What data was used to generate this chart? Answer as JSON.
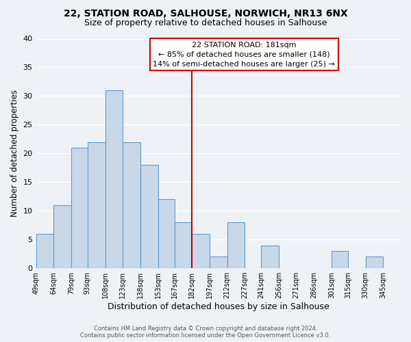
{
  "title1": "22, STATION ROAD, SALHOUSE, NORWICH, NR13 6NX",
  "title2": "Size of property relative to detached houses in Salhouse",
  "xlabel": "Distribution of detached houses by size in Salhouse",
  "ylabel": "Number of detached properties",
  "bin_labels": [
    "49sqm",
    "64sqm",
    "79sqm",
    "93sqm",
    "108sqm",
    "123sqm",
    "138sqm",
    "153sqm",
    "167sqm",
    "182sqm",
    "197sqm",
    "212sqm",
    "227sqm",
    "241sqm",
    "256sqm",
    "271sqm",
    "286sqm",
    "301sqm",
    "315sqm",
    "330sqm",
    "345sqm"
  ],
  "bin_edges": [
    49,
    64,
    79,
    93,
    108,
    123,
    138,
    153,
    167,
    182,
    197,
    212,
    227,
    241,
    256,
    271,
    286,
    301,
    315,
    330,
    345
  ],
  "bar_heights": [
    6,
    11,
    21,
    22,
    31,
    22,
    18,
    12,
    8,
    6,
    2,
    8,
    0,
    4,
    0,
    0,
    0,
    3,
    0,
    2,
    0
  ],
  "bar_color": "#c8d8e8",
  "bar_edge_color": "#5b9bd5",
  "vline_x": 182,
  "vline_color": "#cc0000",
  "ylim": [
    0,
    40
  ],
  "yticks": [
    0,
    5,
    10,
    15,
    20,
    25,
    30,
    35,
    40
  ],
  "annotation_title": "22 STATION ROAD: 181sqm",
  "annotation_line1": "← 85% of detached houses are smaller (148)",
  "annotation_line2": "14% of semi-detached houses are larger (25) →",
  "annotation_box_color": "#cc0000",
  "footer1": "Contains HM Land Registry data © Crown copyright and database right 2024.",
  "footer2": "Contains public sector information licensed under the Open Government Licence v3.0.",
  "bg_color": "#eef2f7",
  "grid_color": "#ffffff"
}
